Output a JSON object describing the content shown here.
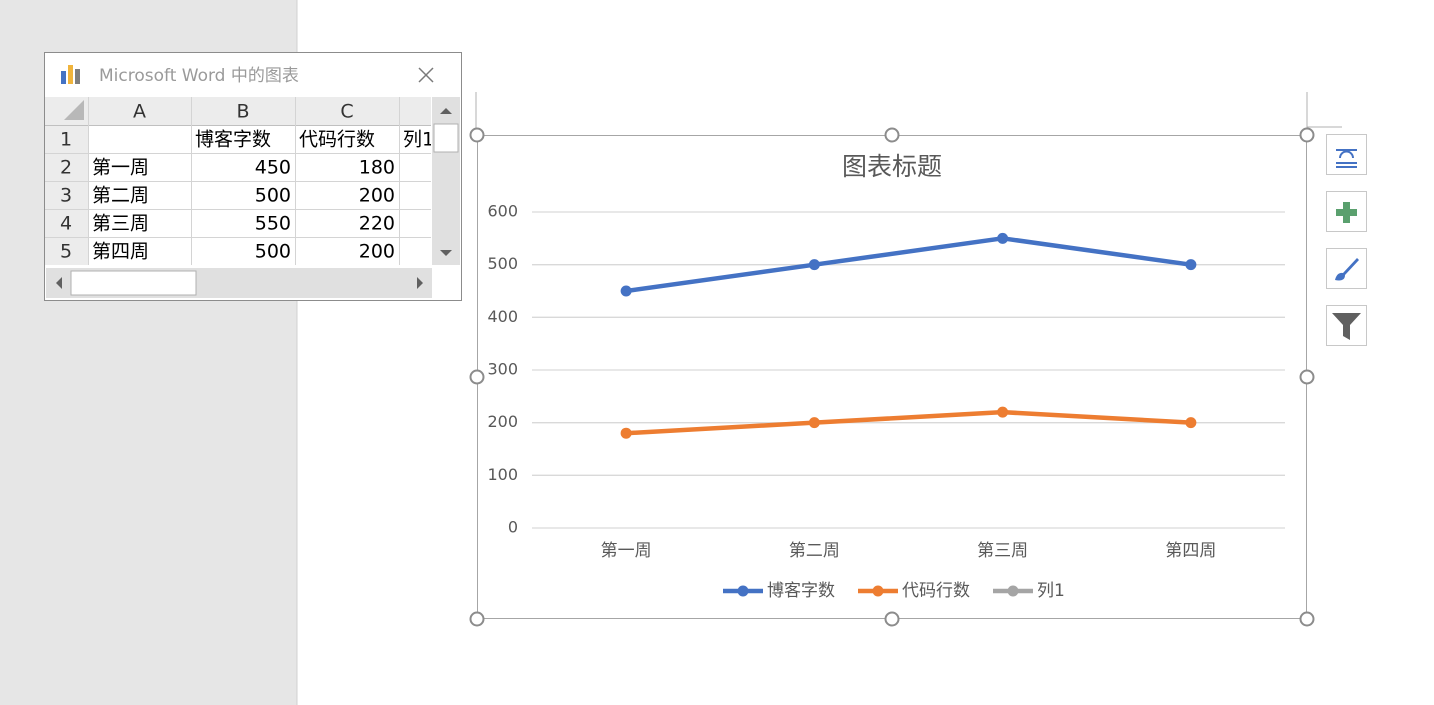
{
  "window": {
    "title": "Microsoft Word 中的图表"
  },
  "sheet": {
    "columns": [
      "A",
      "B",
      "C"
    ],
    "row_numbers": [
      1,
      2,
      3,
      4,
      5
    ],
    "rows": [
      [
        null,
        "博客字数",
        "代码行数",
        "列1"
      ],
      [
        "第一周",
        450,
        180,
        null
      ],
      [
        "第二周",
        500,
        200,
        null
      ],
      [
        "第三周",
        550,
        220,
        null
      ],
      [
        "第四周",
        500,
        200,
        null
      ]
    ]
  },
  "chart_data": {
    "type": "line",
    "title": "图表标题",
    "categories": [
      "第一周",
      "第二周",
      "第三周",
      "第四周"
    ],
    "series": [
      {
        "name": "博客字数",
        "color": "#4472c4",
        "values": [
          450,
          500,
          550,
          500
        ]
      },
      {
        "name": "代码行数",
        "color": "#ed7d31",
        "values": [
          180,
          200,
          220,
          200
        ]
      },
      {
        "name": "列1",
        "color": "#a5a5a5",
        "values": [
          null,
          null,
          null,
          null
        ]
      }
    ],
    "ylim": [
      0,
      600
    ],
    "yticks": [
      0,
      100,
      200,
      300,
      400,
      500,
      600
    ],
    "grid": true,
    "legend": "bottom"
  }
}
